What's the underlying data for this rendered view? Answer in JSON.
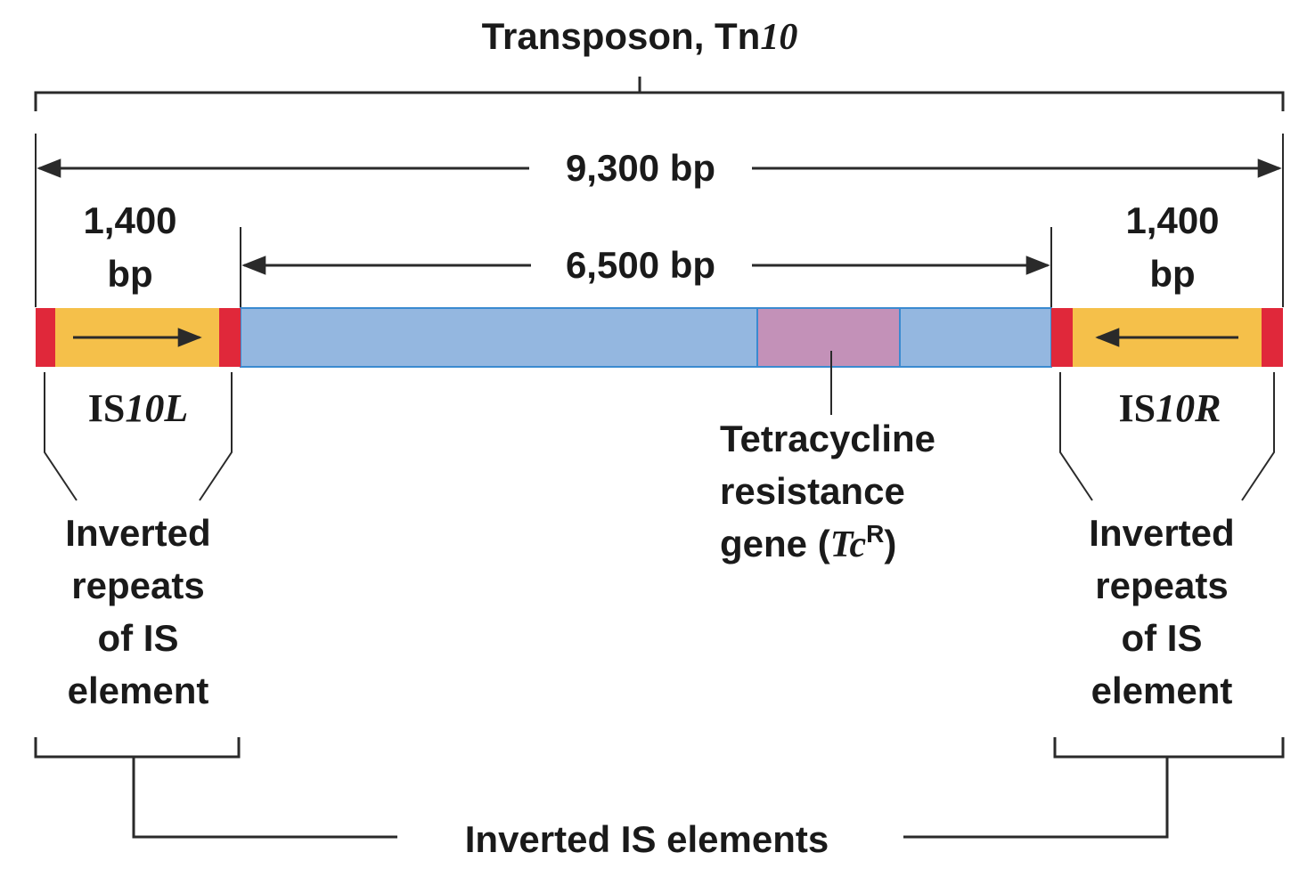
{
  "title": {
    "main": "Transposon, Tn",
    "italic": "10"
  },
  "lengths": {
    "total": "9,300 bp",
    "central": "6,500 bp",
    "left_is_number": "1,400",
    "left_is_unit": "bp",
    "right_is_number": "1,400",
    "right_is_unit": "bp"
  },
  "is_left": {
    "prefix": "IS",
    "italic": "10L"
  },
  "is_right": {
    "prefix": "IS",
    "italic": "10R"
  },
  "tet_gene": {
    "line1": "Tetracycline",
    "line2": "resistance",
    "line3_pre": "gene (",
    "line3_italic": "Tc",
    "line3_sup": "R",
    "line3_post": ")"
  },
  "inverted_repeats_left": [
    "Inverted",
    "repeats",
    "of IS",
    "element"
  ],
  "inverted_repeats_right": [
    "Inverted",
    "repeats",
    "of IS",
    "element"
  ],
  "bottom_label": "Inverted IS elements",
  "colors": {
    "is_element": "#f5c04a",
    "repeat_end": "#e0283a",
    "central_region": "#94b7e0",
    "tet_gene": "#c391b8",
    "lines": "#2a2a2a"
  }
}
